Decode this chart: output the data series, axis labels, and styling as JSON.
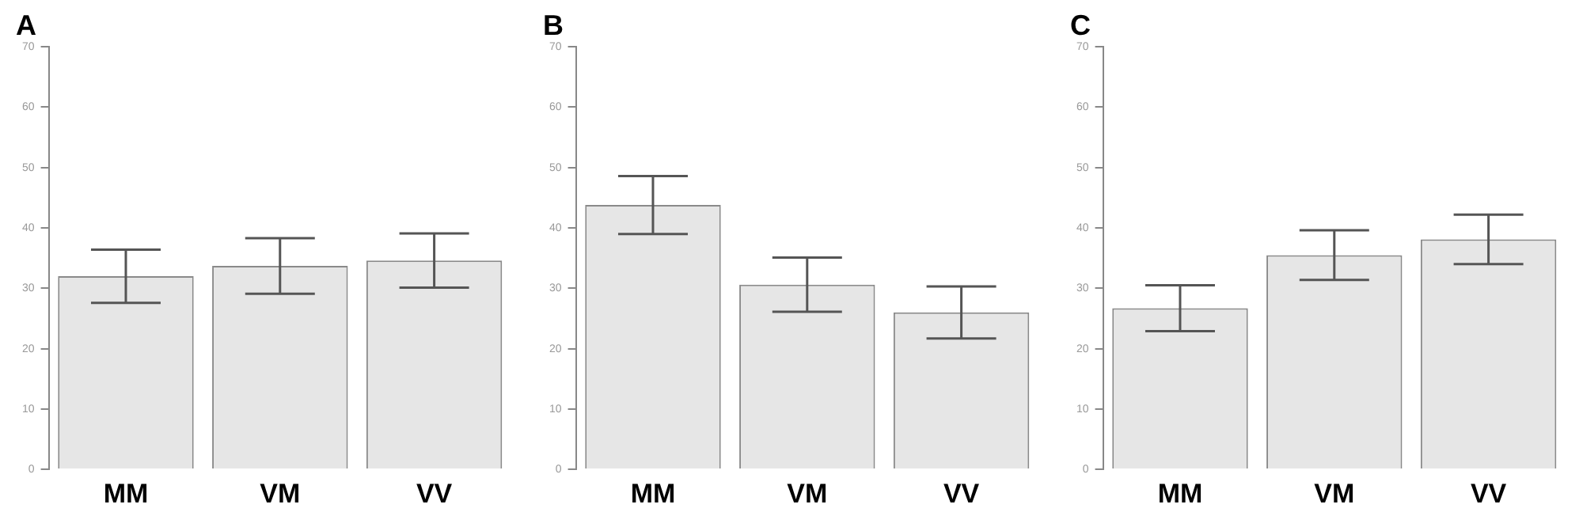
{
  "chart_data": [
    {
      "type": "bar",
      "title": "A",
      "categories": [
        "MM",
        "VM",
        "VV"
      ],
      "values": [
        32.0,
        33.7,
        34.6
      ],
      "errors": [
        4.4,
        4.6,
        4.5
      ],
      "color": "#e6e6e6",
      "ylim": [
        0,
        70
      ],
      "yticks": [
        0,
        10,
        20,
        30,
        40,
        50,
        60,
        70
      ],
      "grid": false,
      "legend": false
    },
    {
      "type": "bar",
      "title": "B",
      "categories": [
        "MM",
        "VM",
        "VV"
      ],
      "values": [
        43.8,
        30.6,
        26.0
      ],
      "errors": [
        4.8,
        4.5,
        4.3
      ],
      "color": "#e6e6e6",
      "ylim": [
        0,
        70
      ],
      "yticks": [
        0,
        10,
        20,
        30,
        40,
        50,
        60,
        70
      ],
      "grid": false,
      "legend": false
    },
    {
      "type": "bar",
      "title": "C",
      "categories": [
        "MM",
        "VM",
        "VV"
      ],
      "values": [
        26.7,
        35.5,
        38.1
      ],
      "errors": [
        3.8,
        4.1,
        4.1
      ],
      "color": "#e6e6e6",
      "ylim": [
        0,
        70
      ],
      "yticks": [
        0,
        10,
        20,
        30,
        40,
        50,
        60,
        70
      ],
      "grid": false,
      "legend": false
    }
  ]
}
